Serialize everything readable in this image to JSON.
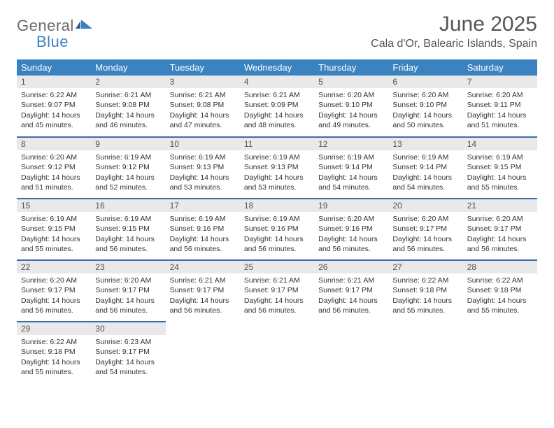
{
  "brand": {
    "word1": "General",
    "word2": "Blue"
  },
  "title": "June 2025",
  "location": "Cala d'Or, Balearic Islands, Spain",
  "colors": {
    "header_bg": "#3b83c0",
    "header_text": "#ffffff",
    "row_divider": "#3b6ea5",
    "daynum_bg": "#e9e9e9",
    "text": "#333333",
    "title_text": "#555555"
  },
  "weekdays": [
    "Sunday",
    "Monday",
    "Tuesday",
    "Wednesday",
    "Thursday",
    "Friday",
    "Saturday"
  ],
  "weeks": [
    [
      {
        "n": "1",
        "sr": "6:22 AM",
        "ss": "9:07 PM",
        "dl": "14 hours and 45 minutes."
      },
      {
        "n": "2",
        "sr": "6:21 AM",
        "ss": "9:08 PM",
        "dl": "14 hours and 46 minutes."
      },
      {
        "n": "3",
        "sr": "6:21 AM",
        "ss": "9:08 PM",
        "dl": "14 hours and 47 minutes."
      },
      {
        "n": "4",
        "sr": "6:21 AM",
        "ss": "9:09 PM",
        "dl": "14 hours and 48 minutes."
      },
      {
        "n": "5",
        "sr": "6:20 AM",
        "ss": "9:10 PM",
        "dl": "14 hours and 49 minutes."
      },
      {
        "n": "6",
        "sr": "6:20 AM",
        "ss": "9:10 PM",
        "dl": "14 hours and 50 minutes."
      },
      {
        "n": "7",
        "sr": "6:20 AM",
        "ss": "9:11 PM",
        "dl": "14 hours and 51 minutes."
      }
    ],
    [
      {
        "n": "8",
        "sr": "6:20 AM",
        "ss": "9:12 PM",
        "dl": "14 hours and 51 minutes."
      },
      {
        "n": "9",
        "sr": "6:19 AM",
        "ss": "9:12 PM",
        "dl": "14 hours and 52 minutes."
      },
      {
        "n": "10",
        "sr": "6:19 AM",
        "ss": "9:13 PM",
        "dl": "14 hours and 53 minutes."
      },
      {
        "n": "11",
        "sr": "6:19 AM",
        "ss": "9:13 PM",
        "dl": "14 hours and 53 minutes."
      },
      {
        "n": "12",
        "sr": "6:19 AM",
        "ss": "9:14 PM",
        "dl": "14 hours and 54 minutes."
      },
      {
        "n": "13",
        "sr": "6:19 AM",
        "ss": "9:14 PM",
        "dl": "14 hours and 54 minutes."
      },
      {
        "n": "14",
        "sr": "6:19 AM",
        "ss": "9:15 PM",
        "dl": "14 hours and 55 minutes."
      }
    ],
    [
      {
        "n": "15",
        "sr": "6:19 AM",
        "ss": "9:15 PM",
        "dl": "14 hours and 55 minutes."
      },
      {
        "n": "16",
        "sr": "6:19 AM",
        "ss": "9:15 PM",
        "dl": "14 hours and 56 minutes."
      },
      {
        "n": "17",
        "sr": "6:19 AM",
        "ss": "9:16 PM",
        "dl": "14 hours and 56 minutes."
      },
      {
        "n": "18",
        "sr": "6:19 AM",
        "ss": "9:16 PM",
        "dl": "14 hours and 56 minutes."
      },
      {
        "n": "19",
        "sr": "6:20 AM",
        "ss": "9:16 PM",
        "dl": "14 hours and 56 minutes."
      },
      {
        "n": "20",
        "sr": "6:20 AM",
        "ss": "9:17 PM",
        "dl": "14 hours and 56 minutes."
      },
      {
        "n": "21",
        "sr": "6:20 AM",
        "ss": "9:17 PM",
        "dl": "14 hours and 56 minutes."
      }
    ],
    [
      {
        "n": "22",
        "sr": "6:20 AM",
        "ss": "9:17 PM",
        "dl": "14 hours and 56 minutes."
      },
      {
        "n": "23",
        "sr": "6:20 AM",
        "ss": "9:17 PM",
        "dl": "14 hours and 56 minutes."
      },
      {
        "n": "24",
        "sr": "6:21 AM",
        "ss": "9:17 PM",
        "dl": "14 hours and 56 minutes."
      },
      {
        "n": "25",
        "sr": "6:21 AM",
        "ss": "9:17 PM",
        "dl": "14 hours and 56 minutes."
      },
      {
        "n": "26",
        "sr": "6:21 AM",
        "ss": "9:17 PM",
        "dl": "14 hours and 56 minutes."
      },
      {
        "n": "27",
        "sr": "6:22 AM",
        "ss": "9:18 PM",
        "dl": "14 hours and 55 minutes."
      },
      {
        "n": "28",
        "sr": "6:22 AM",
        "ss": "9:18 PM",
        "dl": "14 hours and 55 minutes."
      }
    ],
    [
      {
        "n": "29",
        "sr": "6:22 AM",
        "ss": "9:18 PM",
        "dl": "14 hours and 55 minutes."
      },
      {
        "n": "30",
        "sr": "6:23 AM",
        "ss": "9:17 PM",
        "dl": "14 hours and 54 minutes."
      },
      null,
      null,
      null,
      null,
      null
    ]
  ],
  "labels": {
    "sunrise": "Sunrise:",
    "sunset": "Sunset:",
    "daylight": "Daylight:"
  }
}
